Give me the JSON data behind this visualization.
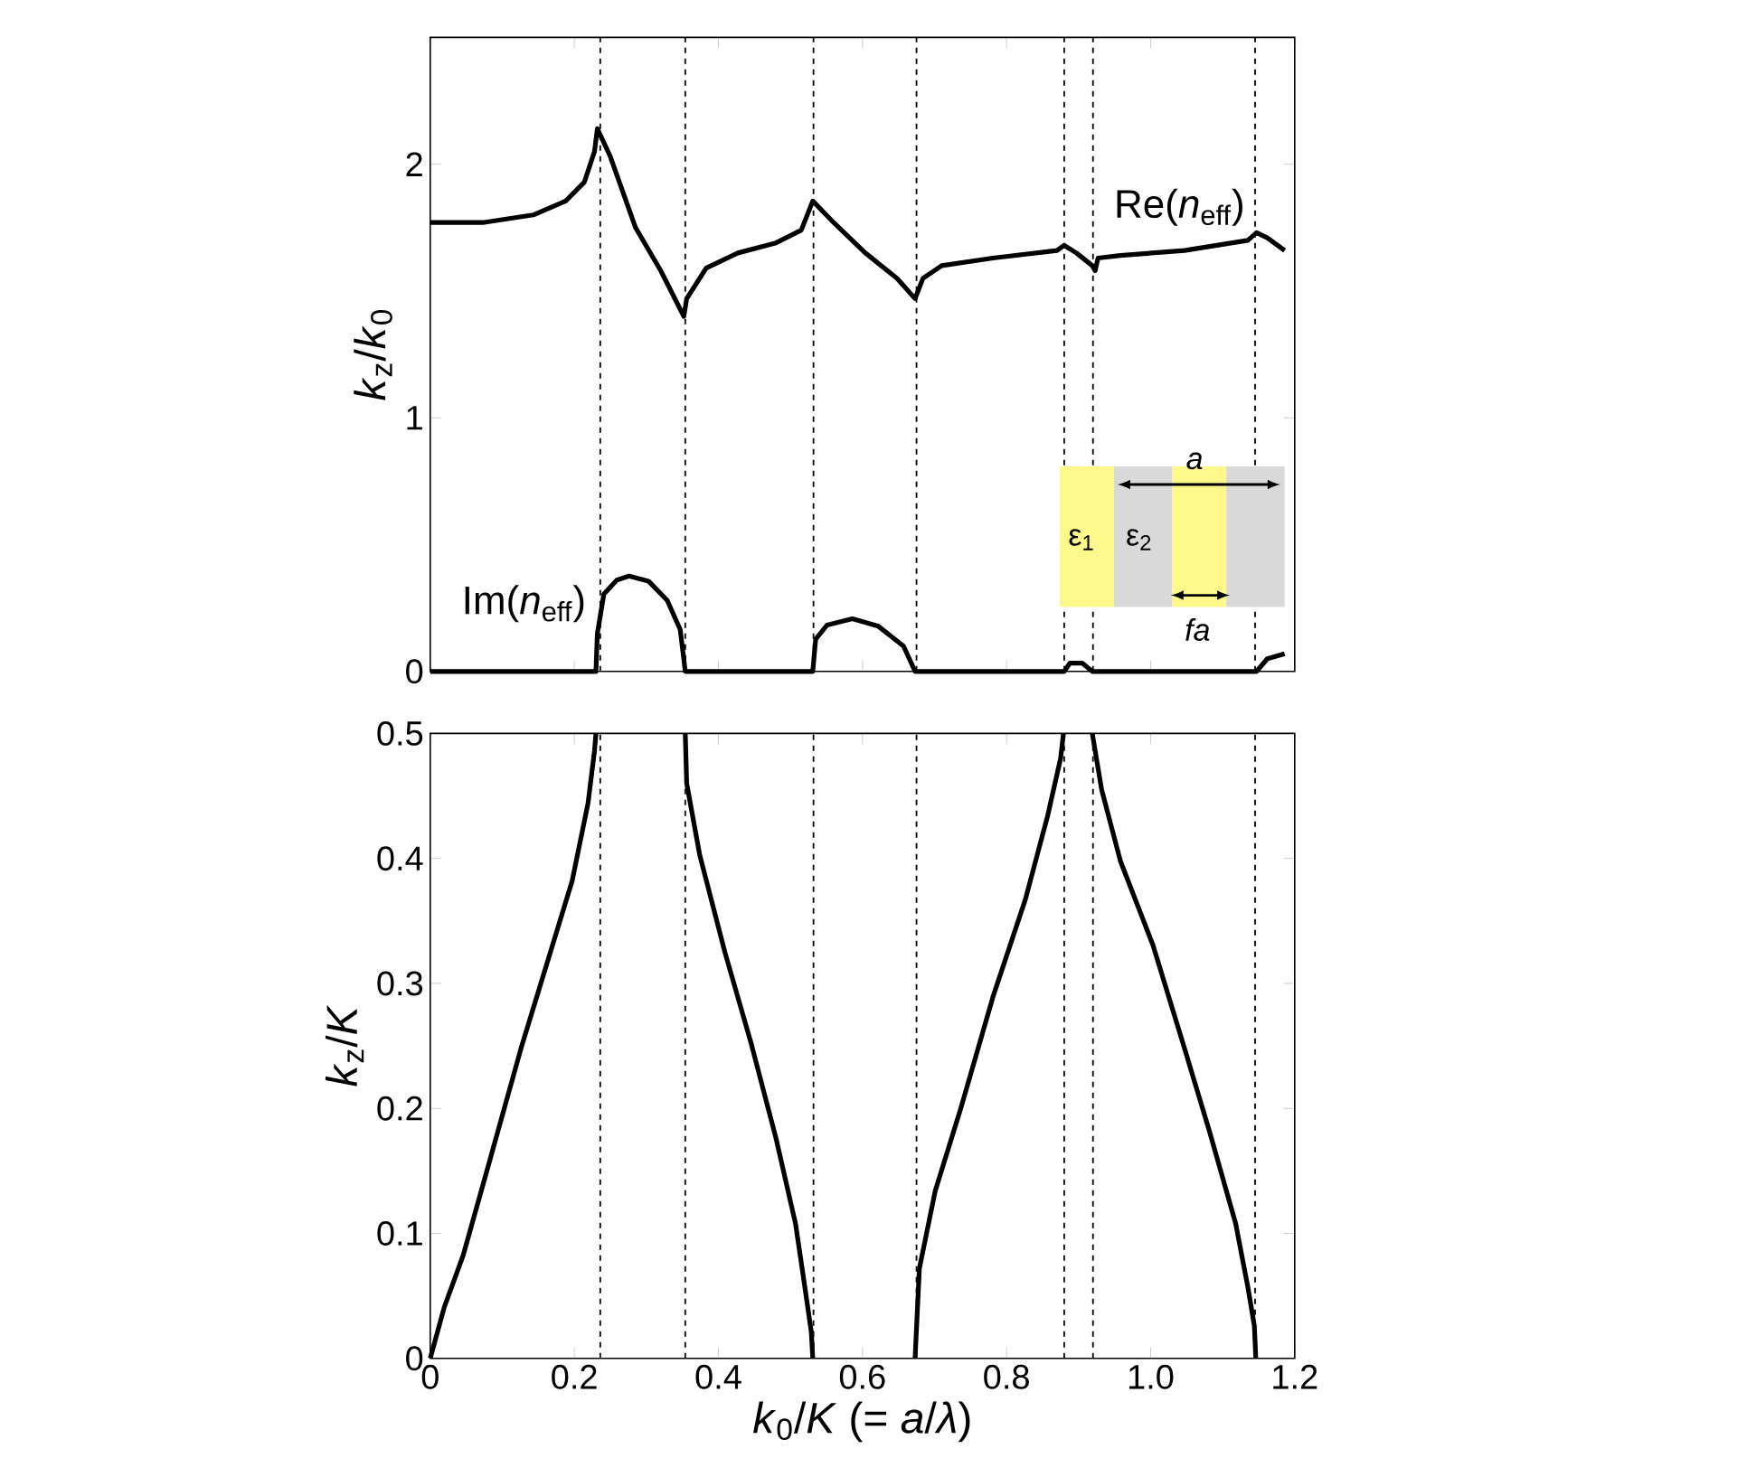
{
  "chart_data": [
    {
      "type": "line",
      "ylabel": "*k*$_{z}$/*k*$_{0}$",
      "xlim": [
        0,
        1.2
      ],
      "ylim": [
        0,
        2.5
      ],
      "xticks": [
        0,
        0.2,
        0.4,
        0.6,
        0.8,
        1.0,
        1.2
      ],
      "yticks": [
        0,
        1,
        2
      ],
      "tick_labels": "y",
      "legend": false,
      "grid": false,
      "color": "#000000",
      "series": [
        {
          "name": "Re(*n*$_{eff}$)",
          "x": [
            0,
            0.073,
            0.143,
            0.188,
            0.214,
            0.228,
            0.232,
            0.25,
            0.285,
            0.32,
            0.352,
            0.356,
            0.383,
            0.427,
            0.48,
            0.515,
            0.531,
            0.56,
            0.604,
            0.648,
            0.673,
            0.684,
            0.71,
            0.781,
            0.87,
            0.88,
            0.897,
            0.919,
            0.923,
            0.927,
            0.958,
            1.047,
            1.135,
            1.147,
            1.162,
            1.186
          ],
          "values": [
            1.77,
            1.77,
            1.8,
            1.855,
            1.93,
            2.05,
            2.14,
            2.03,
            1.75,
            1.58,
            1.4,
            1.47,
            1.59,
            1.65,
            1.69,
            1.74,
            1.855,
            1.77,
            1.65,
            1.55,
            1.47,
            1.55,
            1.6,
            1.63,
            1.66,
            1.68,
            1.65,
            1.6,
            1.58,
            1.63,
            1.64,
            1.66,
            1.7,
            1.73,
            1.71,
            1.66
          ]
        },
        {
          "name": "Im(*n*$_{eff}$)",
          "x": [
            0,
            0.23,
            0.232,
            0.241,
            0.259,
            0.276,
            0.303,
            0.329,
            0.347,
            0.354,
            0.531,
            0.535,
            0.551,
            0.586,
            0.622,
            0.657,
            0.673,
            0.88,
            0.888,
            0.905,
            0.919,
            1.147,
            1.162,
            1.186
          ],
          "values": [
            0,
            0,
            0.15,
            0.305,
            0.36,
            0.376,
            0.356,
            0.28,
            0.165,
            0,
            0,
            0.127,
            0.183,
            0.208,
            0.178,
            0.1,
            0,
            0,
            0.033,
            0.033,
            0,
            0,
            0.05,
            0.07
          ]
        }
      ],
      "ref_lines": [
        {
          "axis": "x",
          "value": 0.236,
          "line_style": "dashed"
        },
        {
          "axis": "x",
          "value": 0.354,
          "line_style": "dashed"
        },
        {
          "axis": "x",
          "value": 0.532,
          "line_style": "dashed"
        },
        {
          "axis": "x",
          "value": 0.675,
          "line_style": "dashed"
        },
        {
          "axis": "x",
          "value": 0.88,
          "line_style": "dashed"
        },
        {
          "axis": "x",
          "value": 0.92,
          "line_style": "dashed"
        },
        {
          "axis": "x",
          "value": 1.145,
          "line_style": "dashed"
        }
      ],
      "annotations": [
        "ε$_{1}$",
        "ε$_{2}$",
        "*a*",
        "*fa*"
      ]
    },
    {
      "type": "line",
      "xlabel": "*k*$_{0}$/*K* (= *a*/*λ*)",
      "ylabel": "*k*$_{z}$/*K*",
      "xlim": [
        0,
        1.2
      ],
      "ylim": [
        0,
        0.5
      ],
      "xticks": [
        0,
        0.2,
        0.4,
        0.6,
        0.8,
        {
          "value": 1.0,
          "label": "1.0"
        },
        1.2
      ],
      "yticks": [
        0,
        0.1,
        0.2,
        0.3,
        0.4,
        0.5
      ],
      "legend": false,
      "grid": false,
      "color": "#000000",
      "series": [
        {
          "x": [
            0,
            0.0195,
            0.046,
            0.081,
            0.126,
            0.17,
            0.197,
            0.219,
            0.228,
            0.23
          ],
          "values": [
            0,
            0.041,
            0.083,
            0.155,
            0.248,
            0.331,
            0.382,
            0.444,
            0.486,
            0.5
          ]
        },
        {
          "x": [
            0.354,
            0.356,
            0.374,
            0.409,
            0.445,
            0.48,
            0.507,
            0.52,
            0.529,
            0.531
          ],
          "values": [
            0.5,
            0.46,
            0.403,
            0.325,
            0.253,
            0.176,
            0.108,
            0.057,
            0.021,
            0
          ]
        },
        {
          "x": [
            0.673,
            0.679,
            0.701,
            0.737,
            0.781,
            0.826,
            0.857,
            0.875,
            0.879
          ],
          "values": [
            0,
            0.072,
            0.134,
            0.201,
            0.289,
            0.367,
            0.434,
            0.48,
            0.5
          ]
        },
        {
          "x": [
            0.919,
            0.932,
            0.958,
            1.003,
            1.047,
            1.082,
            1.118,
            1.135,
            1.144,
            1.146
          ],
          "values": [
            0.5,
            0.455,
            0.398,
            0.331,
            0.248,
            0.181,
            0.108,
            0.057,
            0.026,
            0
          ]
        }
      ],
      "ref_lines": [
        {
          "axis": "x",
          "value": 0.236,
          "line_style": "dashed"
        },
        {
          "axis": "x",
          "value": 0.354,
          "line_style": "dashed"
        },
        {
          "axis": "x",
          "value": 0.532,
          "line_style": "dashed"
        },
        {
          "axis": "x",
          "value": 0.675,
          "line_style": "dashed"
        },
        {
          "axis": "x",
          "value": 0.88,
          "line_style": "dashed"
        },
        {
          "axis": "x",
          "value": 0.92,
          "line_style": "dashed"
        },
        {
          "axis": "x",
          "value": 1.145,
          "line_style": "dashed"
        }
      ]
    }
  ]
}
